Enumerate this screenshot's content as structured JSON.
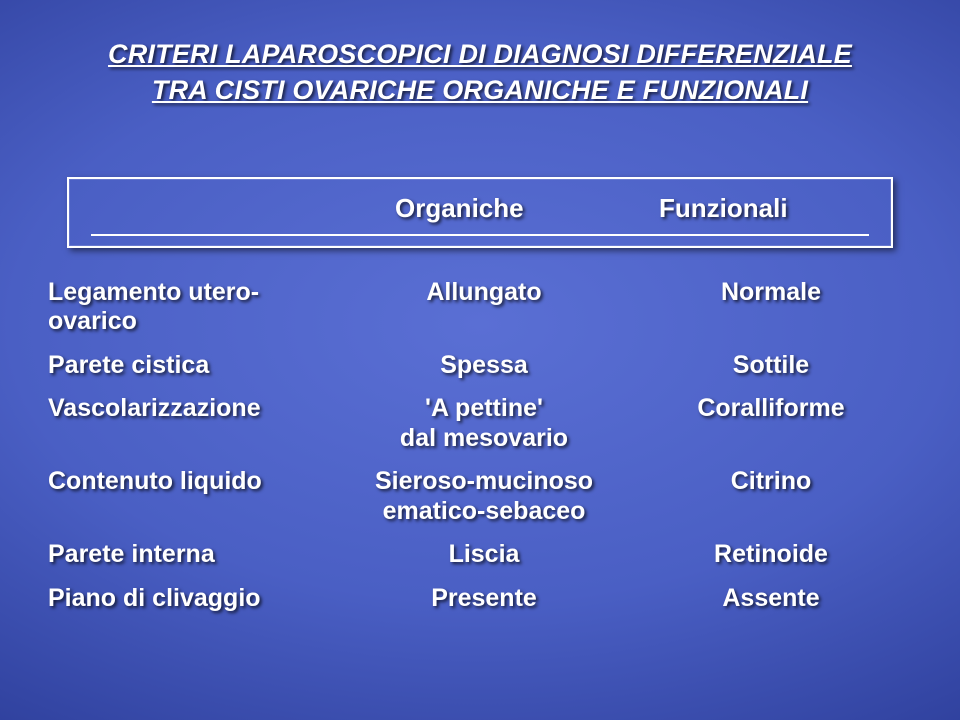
{
  "title": {
    "line1": "CRITERI LAPAROSCOPICI DI DIAGNOSI DIFFERENZIALE",
    "line2": "TRA CISTI OVARICHE ORGANICHE E FUNZIONALI"
  },
  "headers": {
    "organiche": "Organiche",
    "funzionali": "Funzionali"
  },
  "rows": [
    {
      "label": "Legamento utero-ovarico",
      "org": "Allungato",
      "fun": "Normale"
    },
    {
      "label": "Parete cistica",
      "org": "Spessa",
      "fun": "Sottile"
    },
    {
      "label": "Vascolarizzazione",
      "org": "'A pettine'",
      "org_sub": "dal mesovario",
      "fun": "Coralliforme"
    },
    {
      "label": "Contenuto liquido",
      "org": "Sieroso-mucinoso",
      "org_sub": "ematico-sebaceo",
      "fun": "Citrino"
    },
    {
      "label": "Parete interna",
      "org": "Liscia",
      "fun": "Retinoide"
    },
    {
      "label": "Piano di clivaggio",
      "org": "Presente",
      "fun": "Assente"
    }
  ],
  "colors": {
    "text": "#ffffff",
    "border": "#ffffff",
    "bg_center": "#5a6fd4",
    "bg_edge": "#0a1560"
  }
}
